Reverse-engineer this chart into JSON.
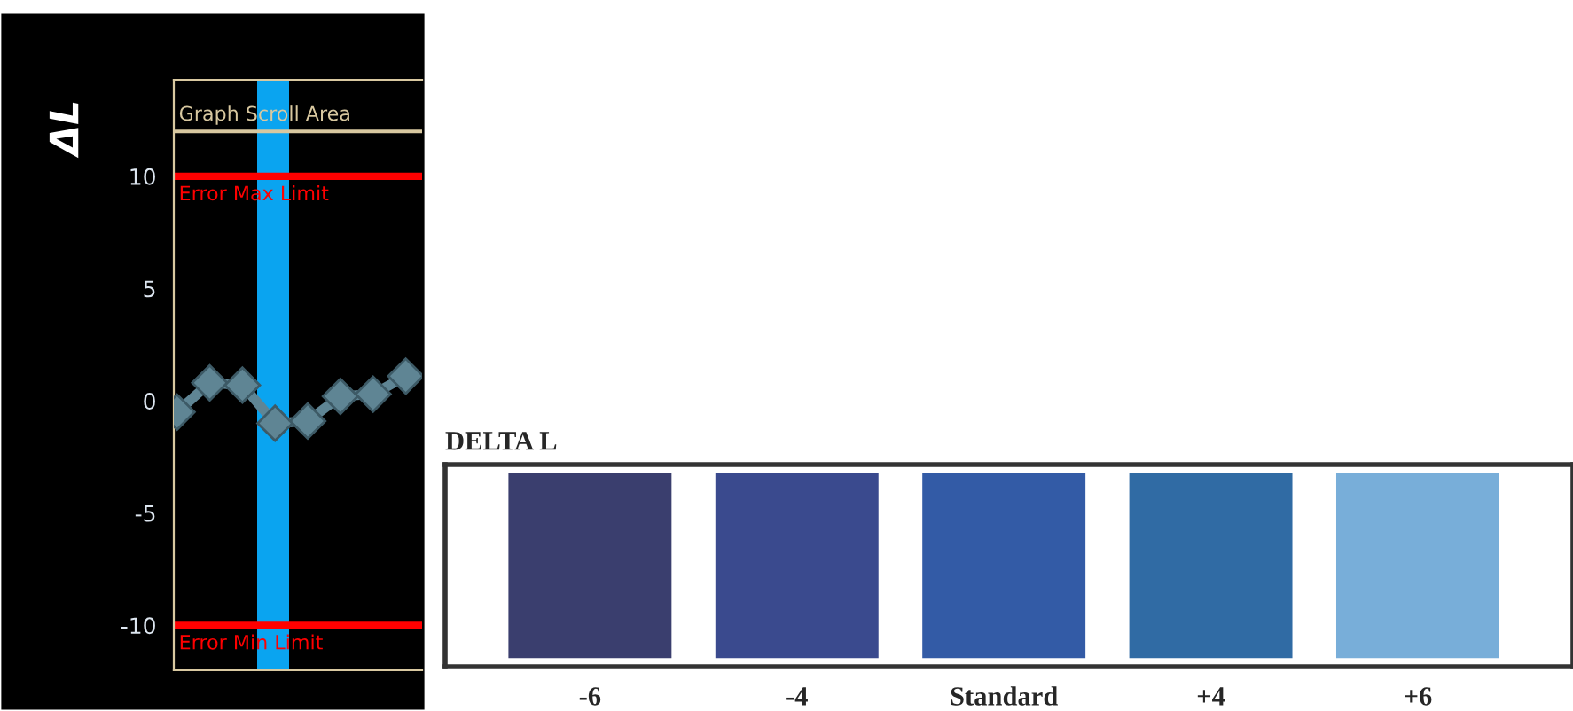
{
  "chart_data": [
    {
      "type": "line",
      "ylabel": "ΔL",
      "categories": [
        null,
        null,
        null,
        null,
        null,
        null,
        null,
        null
      ],
      "series": [
        {
          "color": "#5f8594",
          "values": [
            -0.5,
            0.8,
            0.7,
            -1.0,
            -0.9,
            0.2,
            0.3,
            1.1
          ]
        }
      ],
      "ylim": [
        -12,
        14.3
      ],
      "yticks": [
        -10,
        -5,
        0,
        5,
        10
      ],
      "marker": "diamond",
      "line_style": "solid",
      "grid": false,
      "tick_labels": "y",
      "ref_lines": [
        {
          "axis": "y",
          "value": 12,
          "label": "Graph Scroll Area",
          "color": "#d8c8a0"
        },
        {
          "axis": "y",
          "value": 10,
          "label": "Error Max Limit",
          "color": "#ff0000"
        },
        {
          "axis": "y",
          "value": -10,
          "label": "Error Min Limit",
          "color": "#ff0000"
        }
      ]
    },
    {
      "type": "other",
      "title": "DELTA L",
      "categories": [
        "-6",
        "-4",
        "Standard",
        "+4",
        "+6"
      ],
      "colors": [
        "#3a3e6e",
        "#3a4a8e",
        "#335ba6",
        "#306ba4",
        "#78aed9"
      ]
    }
  ]
}
